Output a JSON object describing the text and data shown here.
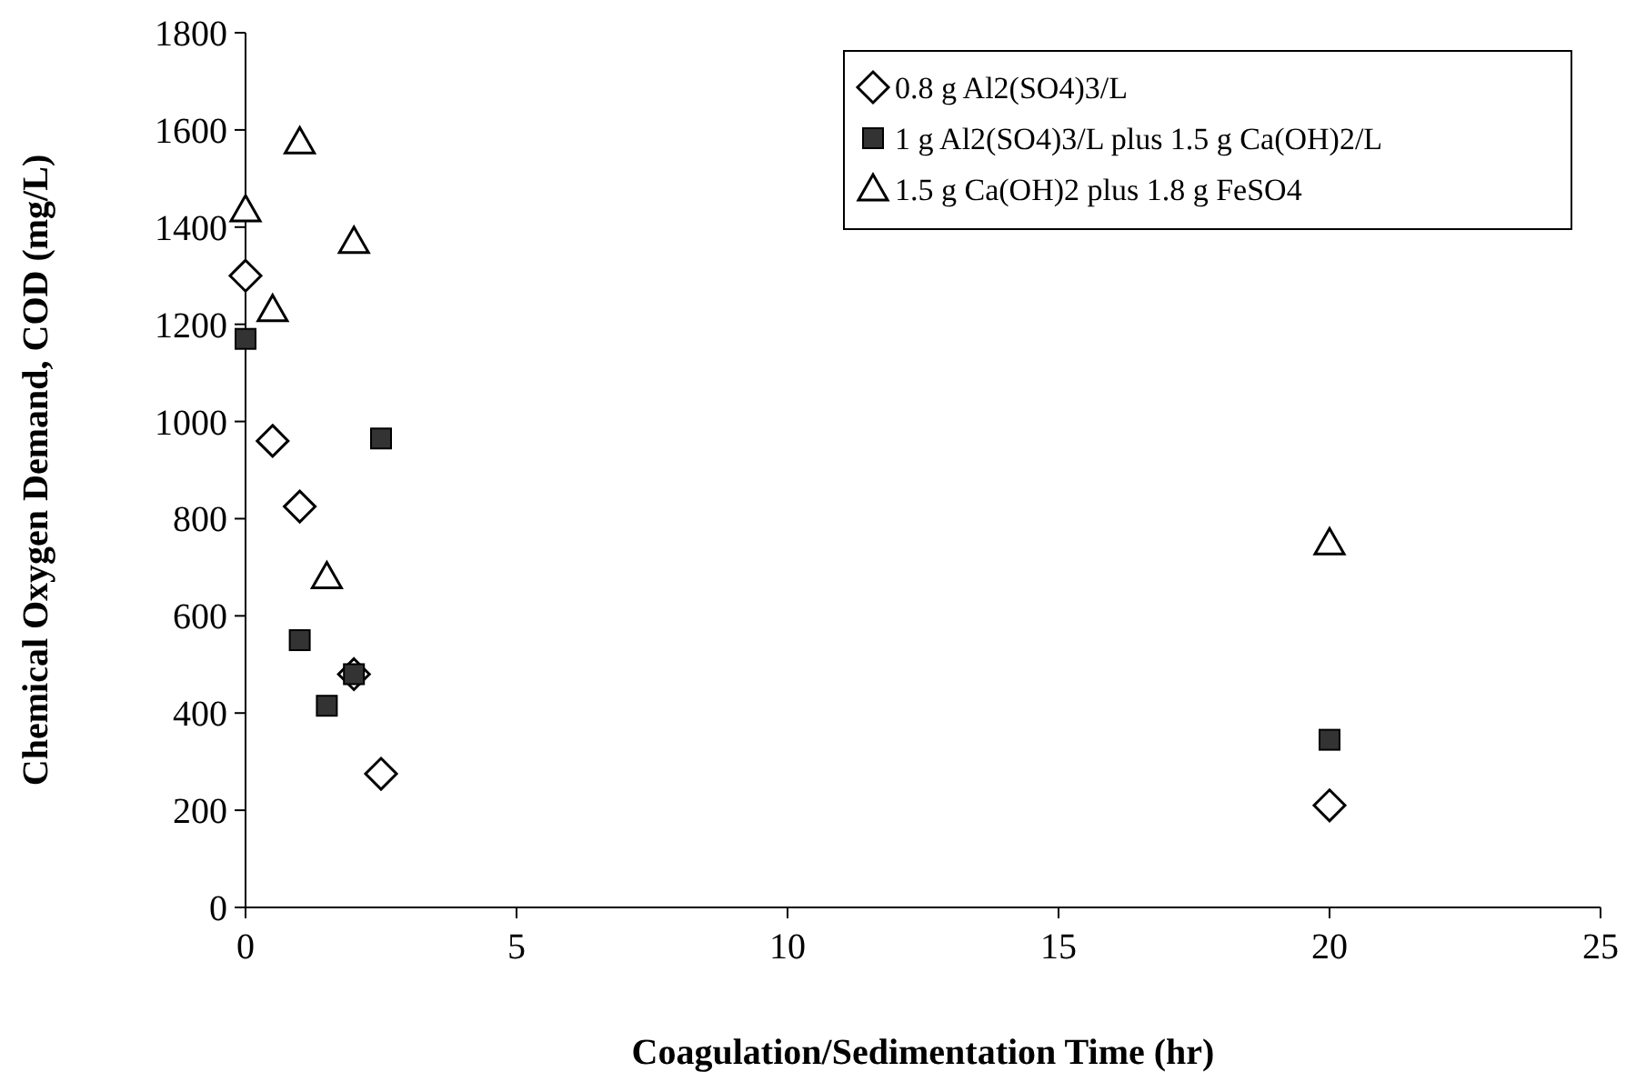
{
  "chart_data": {
    "type": "scatter",
    "xlabel": "Coagulation/Sedimentation Time (hr)",
    "ylabel": "Chemical Oxygen Demand, COD (mg/L)",
    "xlim": [
      0,
      25
    ],
    "xticks": [
      0,
      5,
      10,
      15,
      20,
      25
    ],
    "ylim": [
      0,
      1800
    ],
    "yticks": [
      0,
      200,
      400,
      600,
      800,
      1000,
      1200,
      1400,
      1600,
      1800
    ],
    "grid": false,
    "legend": "top right",
    "series": [
      {
        "name": "0.8 g Al2(SO4)3/L",
        "color": "#000000",
        "marker": "diamond",
        "x": [
          0,
          0.5,
          1,
          2,
          2.5,
          20
        ],
        "values": [
          1300,
          960,
          825,
          480,
          275,
          210
        ]
      },
      {
        "name": "1 g Al2(SO4)3/L plus 1.5 g Ca(OH)2/L",
        "color": "#333333",
        "marker": "square",
        "x": [
          0,
          1,
          1.5,
          2,
          2.5,
          20
        ],
        "values": [
          1170,
          550,
          415,
          480,
          965,
          345
        ]
      },
      {
        "name": "1.5 g Ca(OH)2 plus 1.8 g FeSO4",
        "color": "#000000",
        "marker": "triangle",
        "x": [
          0,
          0.5,
          1,
          1.5,
          2,
          20
        ],
        "values": [
          1435,
          1230,
          1575,
          680,
          1370,
          750
        ]
      }
    ]
  }
}
